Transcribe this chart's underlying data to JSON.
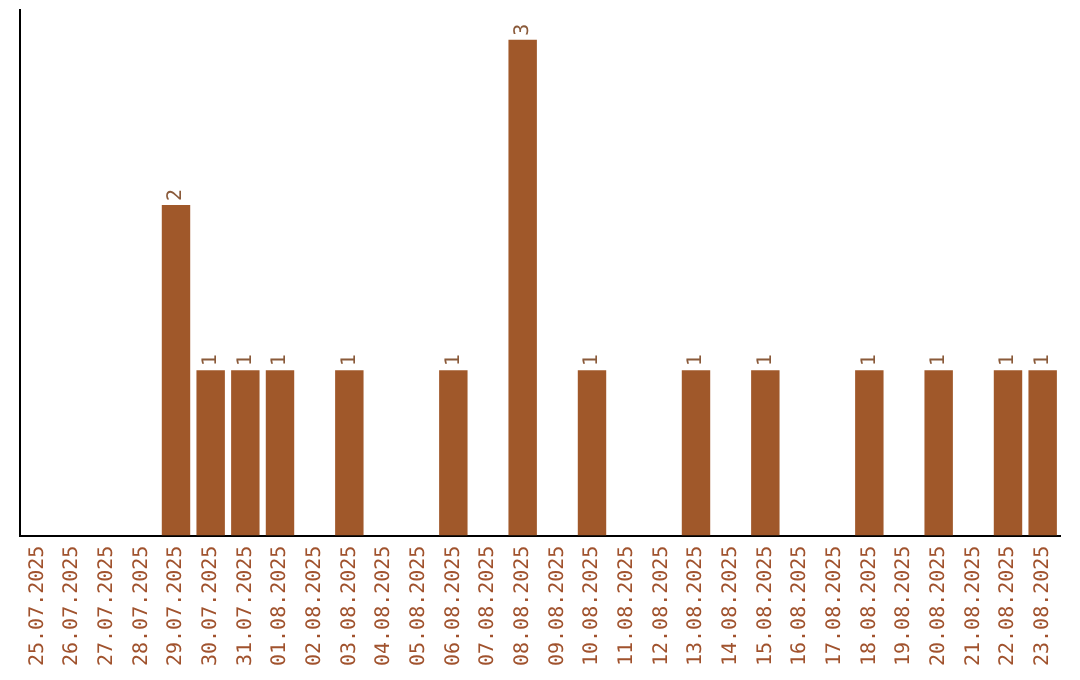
{
  "chart_data": {
    "type": "bar",
    "categories": [
      "25.07.2025",
      "26.07.2025",
      "27.07.2025",
      "28.07.2025",
      "29.07.2025",
      "30.07.2025",
      "31.07.2025",
      "01.08.2025",
      "02.08.2025",
      "03.08.2025",
      "04.08.2025",
      "05.08.2025",
      "06.08.2025",
      "07.08.2025",
      "08.08.2025",
      "09.08.2025",
      "10.08.2025",
      "11.08.2025",
      "12.08.2025",
      "13.08.2025",
      "14.08.2025",
      "15.08.2025",
      "16.08.2025",
      "17.08.2025",
      "18.08.2025",
      "19.08.2025",
      "20.08.2025",
      "21.08.2025",
      "22.08.2025",
      "23.08.2025"
    ],
    "values": [
      0,
      0,
      0,
      0,
      2,
      1,
      1,
      1,
      0,
      1,
      0,
      0,
      1,
      0,
      3,
      0,
      1,
      0,
      0,
      1,
      0,
      1,
      0,
      0,
      1,
      0,
      1,
      0,
      1,
      1
    ],
    "value_labels": [
      null,
      null,
      null,
      null,
      "2",
      "1",
      "1",
      "1",
      null,
      "1",
      null,
      null,
      "1",
      null,
      "3",
      null,
      "1",
      null,
      null,
      "1",
      null,
      "1",
      null,
      null,
      "1",
      null,
      "1",
      null,
      "1",
      "1"
    ],
    "color": "#a0582a",
    "ylim": [
      0,
      3.18
    ],
    "tick_labels": "x",
    "grid": false,
    "legend": false
  }
}
